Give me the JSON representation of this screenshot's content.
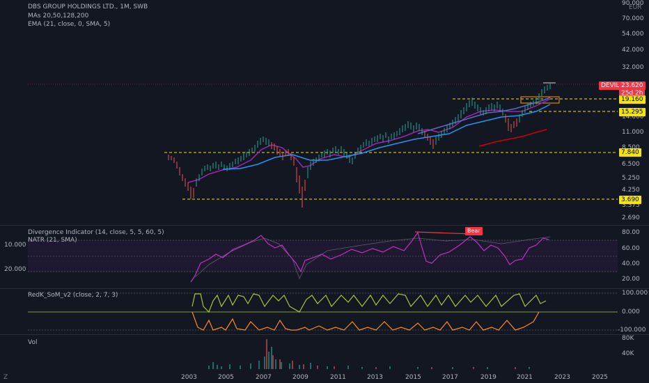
{
  "header": {
    "symbol": "DBS GROUP HOLDINGS LTD., 1M, SWB",
    "ma": "MAs 20,50,128,200",
    "ema": "EMA (21, close, 0, SMA, 5)",
    "currency": "EUR"
  },
  "price_axis": [
    "90.000",
    "70.000",
    "54.000",
    "42.000",
    "32.000",
    "14.000",
    "11.000",
    "8.500",
    "6.500",
    "5.250",
    "4.250",
    "3.375",
    "2.690"
  ],
  "price_tags": {
    "devil_label": "DEVIL",
    "last": "23.620",
    "countdown": "25d 2h",
    "t1": "19.160",
    "t2": "15.295",
    "t3": "7.840",
    "t4": "3.690"
  },
  "divergence": {
    "title": "Divergence Indicator (14, close, 5, 5, 60, 5)",
    "natr": "NATR (21, SMA)",
    "bear_label": "Bear",
    "left_axis": [
      "10.000",
      "20.000"
    ],
    "right_axis": [
      "80.00",
      "60.00",
      "40.00",
      "20.00"
    ]
  },
  "redk": {
    "title": "RedK_SoM_v2 (close, 2, 7, 3)",
    "axis": [
      "100.000",
      "0.000",
      "-100.000"
    ]
  },
  "volume": {
    "title": "Vol",
    "axis": [
      "80K",
      "40K"
    ]
  },
  "time_axis": [
    "2003",
    "2005",
    "2007",
    "2009",
    "2011",
    "2013",
    "2015",
    "2017",
    "2019",
    "2021",
    "2023",
    "2025"
  ],
  "corner_label": "Z",
  "colors": {
    "background": "#131722",
    "up": "#26a69a",
    "down": "#ef5350",
    "tag_yellow": "#f5e500",
    "tag_red": "#f23645",
    "divergence": "#c430c7",
    "redk_up": "#a3c83a",
    "redk_down": "#ff8c1a"
  }
}
